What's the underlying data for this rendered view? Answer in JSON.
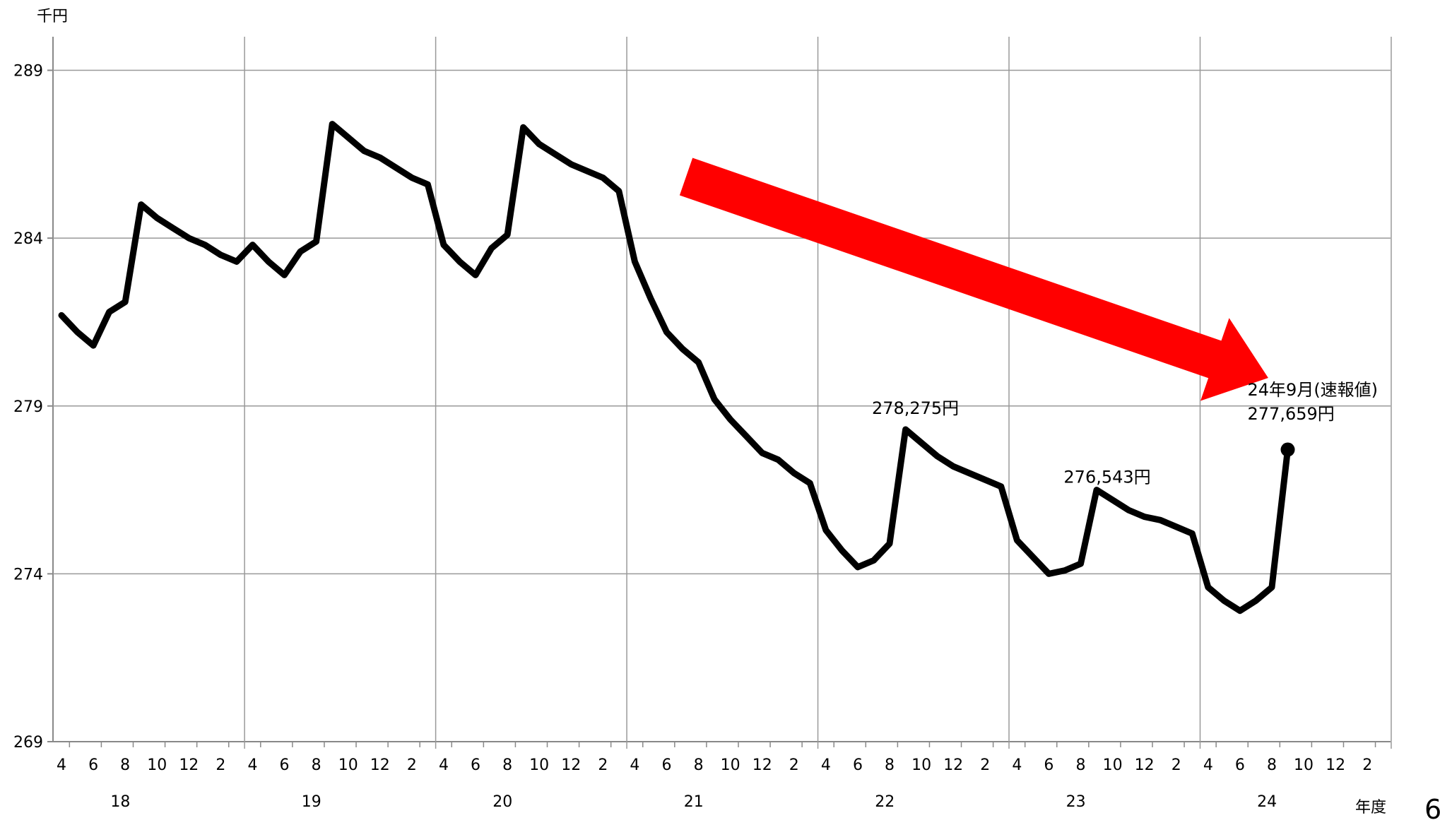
{
  "chart_data": {
    "type": "line",
    "ylabel": "千円",
    "xlabel": "年度",
    "ylim": [
      269,
      290
    ],
    "yticks": [
      269,
      274,
      279,
      284,
      289
    ],
    "fiscal_years": [
      "18",
      "19",
      "20",
      "21",
      "22",
      "23",
      "24"
    ],
    "months": [
      "4",
      "5",
      "6",
      "7",
      "8",
      "9",
      "10",
      "11",
      "12",
      "1",
      "2",
      "3"
    ],
    "month_tick_labels": [
      "4",
      "6",
      "8",
      "10",
      "12",
      "2"
    ],
    "series": [
      {
        "color": "#000000",
        "values": [
          281.7,
          281.2,
          280.8,
          281.8,
          282.1,
          285.0,
          284.6,
          284.3,
          284.0,
          283.8,
          283.5,
          283.3,
          283.8,
          283.3,
          282.9,
          283.6,
          283.9,
          287.4,
          287.0,
          286.6,
          286.4,
          286.1,
          285.8,
          285.6,
          283.8,
          283.3,
          282.9,
          283.7,
          284.1,
          287.3,
          286.8,
          286.5,
          286.2,
          286.0,
          285.8,
          285.4,
          283.3,
          282.2,
          281.2,
          280.7,
          280.3,
          279.2,
          278.6,
          278.1,
          277.6,
          277.4,
          277.0,
          276.7,
          275.3,
          274.7,
          274.2,
          274.4,
          274.9,
          278.3,
          277.9,
          277.5,
          277.2,
          277.0,
          276.8,
          276.6,
          275.0,
          274.5,
          274.0,
          274.1,
          274.3,
          276.5,
          276.2,
          275.9,
          275.7,
          275.6,
          275.4,
          275.2,
          273.6,
          273.2,
          272.9,
          273.2,
          273.6,
          277.7
        ]
      }
    ],
    "annotations": [
      {
        "text": "278,275円",
        "at_index": 53
      },
      {
        "text": "276,543円",
        "at_index": 65
      },
      {
        "text": "24年9月(速報値)",
        "at_index": 77
      },
      {
        "text": "277,659円",
        "at_index": 77
      }
    ],
    "trend_arrow": {
      "color": "#ff0000",
      "from_index": 39,
      "to_index": 74
    }
  },
  "page_number": "6"
}
